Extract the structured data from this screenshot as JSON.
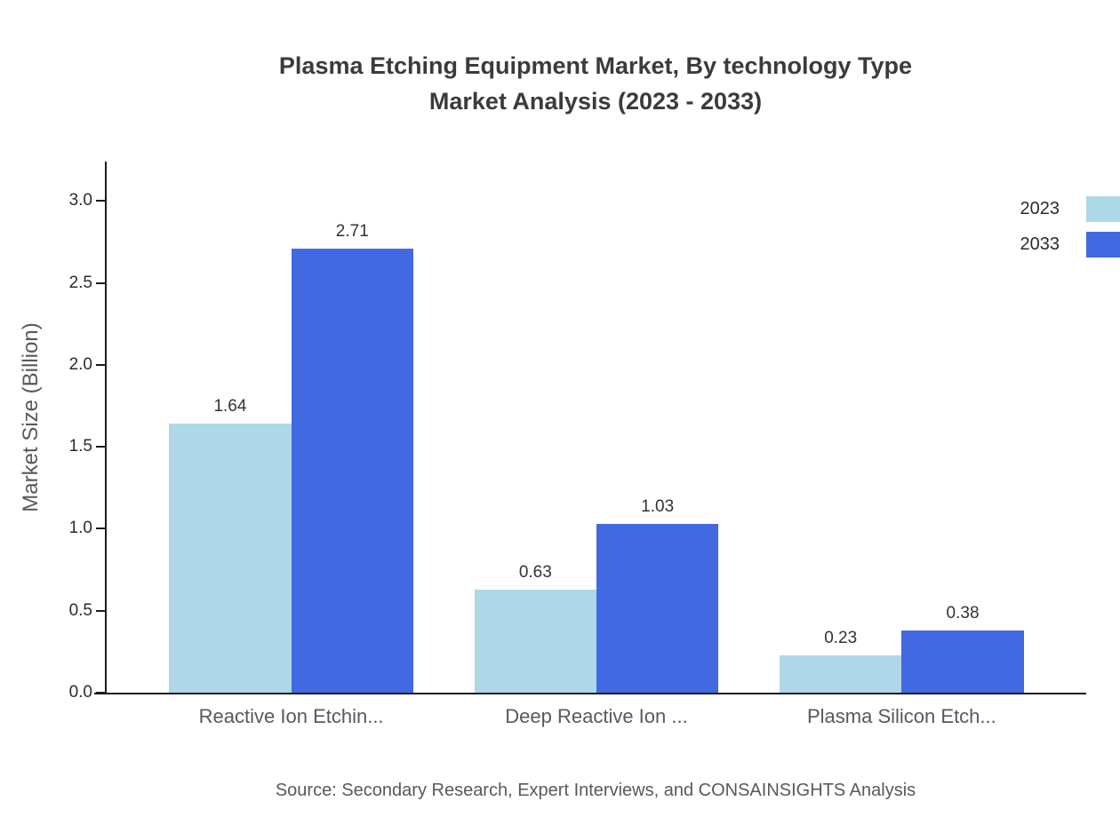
{
  "chart_data": {
    "type": "bar",
    "title": "Plasma Etching Equipment Market, By technology Type",
    "subtitle": "Market Analysis (2023 - 2033)",
    "ylabel": "Market Size (Billion)",
    "xlabel": "",
    "categories": [
      "Reactive Ion Etchin...",
      "Deep Reactive Ion ...",
      "Plasma Silicon Etch..."
    ],
    "series": [
      {
        "name": "2023",
        "color": "#aed7e8",
        "values": [
          1.64,
          0.63,
          0.23
        ]
      },
      {
        "name": "2033",
        "color": "#4169e1",
        "values": [
          2.71,
          1.03,
          0.38
        ]
      }
    ],
    "ylim": [
      0,
      3.24
    ],
    "yticks": [
      0.0,
      0.5,
      1.0,
      1.5,
      2.0,
      2.5,
      3.0
    ],
    "grid": false,
    "legend_position": "top-right",
    "source": "Source: Secondary Research, Expert Interviews, and CONSAINSIGHTS Analysis"
  }
}
